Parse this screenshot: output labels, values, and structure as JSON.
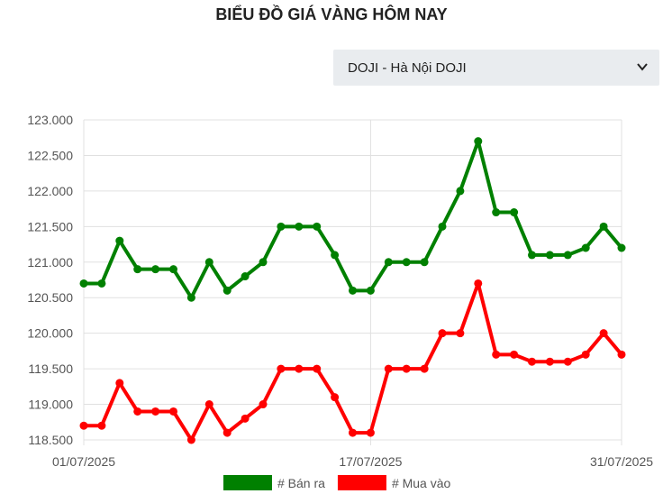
{
  "page": {
    "title": "BIỂU ĐỒ GIÁ VÀNG HÔM NAY"
  },
  "selector": {
    "value": "DOJI - Hà Nội DOJI"
  },
  "chart_data": {
    "type": "line",
    "x": [
      "01/07/2025",
      "02/07/2025",
      "03/07/2025",
      "04/07/2025",
      "05/07/2025",
      "06/07/2025",
      "07/07/2025",
      "08/07/2025",
      "09/07/2025",
      "10/07/2025",
      "11/07/2025",
      "12/07/2025",
      "13/07/2025",
      "14/07/2025",
      "15/07/2025",
      "16/07/2025",
      "17/07/2025",
      "18/07/2025",
      "19/07/2025",
      "20/07/2025",
      "21/07/2025",
      "22/07/2025",
      "23/07/2025",
      "24/07/2025",
      "25/07/2025",
      "26/07/2025",
      "27/07/2025",
      "28/07/2025",
      "29/07/2025",
      "30/07/2025",
      "31/07/2025"
    ],
    "x_tick_labels": [
      "01/07/2025",
      "17/07/2025",
      "31/07/2025"
    ],
    "y_tick_labels": [
      "123.000",
      "122.500",
      "122.000",
      "121.500",
      "121.000",
      "120.500",
      "120.000",
      "119.500",
      "119.000",
      "118.500"
    ],
    "ylim": [
      118500,
      123000
    ],
    "series": [
      {
        "name": "# Bán ra",
        "color": "#008000",
        "values": [
          120700,
          120700,
          121300,
          120900,
          120900,
          120900,
          120500,
          121000,
          120600,
          120800,
          121000,
          121500,
          121500,
          121500,
          121100,
          120600,
          120600,
          121000,
          121000,
          121000,
          121500,
          122000,
          122700,
          121700,
          121700,
          121100,
          121100,
          121100,
          121200,
          121500,
          121200
        ]
      },
      {
        "name": "# Mua vào",
        "color": "#ff0000",
        "values": [
          118700,
          118700,
          119300,
          118900,
          118900,
          118900,
          118500,
          119000,
          118600,
          118800,
          119000,
          119500,
          119500,
          119500,
          119100,
          118600,
          118600,
          119500,
          119500,
          119500,
          120000,
          120000,
          120700,
          119700,
          119700,
          119600,
          119600,
          119600,
          119700,
          120000,
          119700
        ]
      }
    ],
    "grid": true,
    "legend": "bottom"
  }
}
